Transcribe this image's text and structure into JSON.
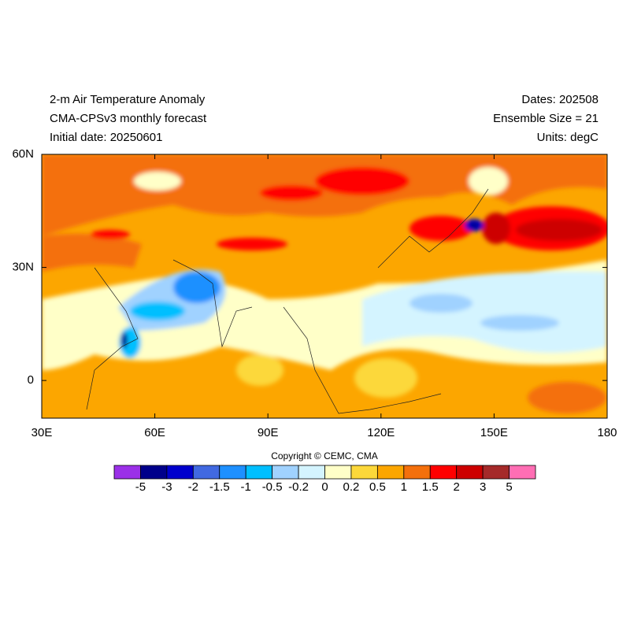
{
  "header": {
    "left": [
      "2-m Air Temperature Anomaly",
      "CMA-CPSv3 monthly forecast",
      "Initial date: 20250601"
    ],
    "right": [
      "Dates: 202508",
      "Ensemble Size = 21",
      "Units: degC"
    ]
  },
  "map": {
    "lon_labels": [
      "30E",
      "60E",
      "90E",
      "120E",
      "150E",
      "180"
    ],
    "lat_labels": [
      "60N",
      "30N",
      "0"
    ]
  },
  "copyright": "Copyright © CEMC, CMA",
  "colorbar": {
    "colors": [
      "#9b30e8",
      "#00008b",
      "#0000cd",
      "#4169e1",
      "#1e90ff",
      "#00bfff",
      "#a0d2ff",
      "#d4f4ff",
      "#ffffc8",
      "#fcd83a",
      "#fca600",
      "#f4700c",
      "#ff0000",
      "#cd0000",
      "#a52a2a",
      "#ff6eb4"
    ],
    "levels": [
      -5,
      -3,
      -2,
      -1.5,
      -1,
      -0.5,
      -0.2,
      0,
      0.2,
      0.5,
      1,
      1.5,
      2,
      3,
      5
    ]
  }
}
